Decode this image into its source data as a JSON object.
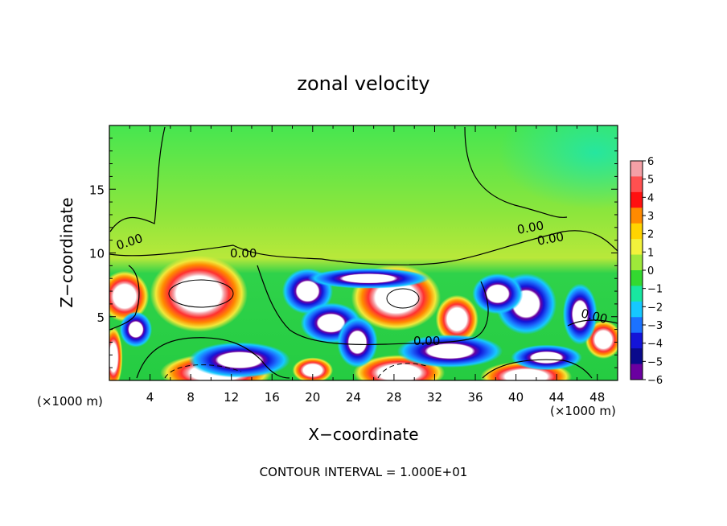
{
  "chart_data": {
    "type": "heatmap",
    "title": "zonal velocity",
    "xlabel": "X−coordinate",
    "ylabel": "Z−coordinate",
    "x_unit_left": "(×1000 m)",
    "x_unit_right": "(×1000 m)",
    "footer": "CONTOUR INTERVAL = 1.000E+01",
    "xlim": [
      0,
      50
    ],
    "ylim": [
      0,
      20
    ],
    "x_ticks": [
      4,
      8,
      12,
      16,
      20,
      24,
      28,
      32,
      36,
      40,
      44,
      48
    ],
    "x_tick_labels": [
      "4",
      "8",
      "12",
      "16",
      "20",
      "24",
      "28",
      "32",
      "36",
      "40",
      "44",
      "48"
    ],
    "y_ticks": [
      5,
      10,
      15
    ],
    "y_tick_labels": [
      "5",
      "10",
      "15"
    ],
    "colorbar": {
      "min": -6,
      "max": 6,
      "labels": [
        "6",
        "5",
        "4",
        "3",
        "2",
        "1",
        "0",
        "−1",
        "−2",
        "−3",
        "−4",
        "−5",
        "−6"
      ],
      "colors": [
        "#f4a0a6",
        "#ff5050",
        "#ff1010",
        "#ff8a00",
        "#ffd400",
        "#f2f23c",
        "#9ee83a",
        "#33d930",
        "#18e6a0",
        "#16c8ff",
        "#1b72ff",
        "#1414d8",
        "#0a0a8c",
        "#6a00a0"
      ]
    },
    "contour_labels": [
      "0.00",
      "0.00",
      "0.00",
      "0.00",
      "0.00",
      "0.00"
    ],
    "features": [
      {
        "kind": "positive",
        "cx": 8.8,
        "cy": 6.8,
        "rx": 4.8,
        "ry": 3.0
      },
      {
        "kind": "positive",
        "cx": 28.2,
        "cy": 6.5,
        "rx": 4.4,
        "ry": 2.6
      },
      {
        "kind": "positive",
        "cx": 34.2,
        "cy": 4.8,
        "rx": 2.1,
        "ry": 1.9
      },
      {
        "kind": "positive",
        "cx": 1.5,
        "cy": 6.6,
        "rx": 2.4,
        "ry": 2.0
      },
      {
        "kind": "positive",
        "cx": 48.6,
        "cy": 3.2,
        "rx": 1.8,
        "ry": 1.5
      },
      {
        "kind": "positive",
        "cx": 10.5,
        "cy": 0.6,
        "rx": 5.5,
        "ry": 1.5
      },
      {
        "kind": "positive",
        "cx": 28.5,
        "cy": 0.6,
        "rx": 4.5,
        "ry": 1.4
      },
      {
        "kind": "positive",
        "cx": 41.0,
        "cy": 0.3,
        "rx": 4.5,
        "ry": 1.2
      },
      {
        "kind": "positive",
        "cx": 20.0,
        "cy": 0.8,
        "rx": 2.0,
        "ry": 1.0
      },
      {
        "kind": "positive",
        "cx": 0.4,
        "cy": 1.8,
        "rx": 0.9,
        "ry": 2.4
      },
      {
        "kind": "negative",
        "cx": 41.0,
        "cy": 6.0,
        "rx": 3.0,
        "ry": 2.4
      },
      {
        "kind": "negative",
        "cx": 19.5,
        "cy": 7.0,
        "rx": 2.5,
        "ry": 1.8
      },
      {
        "kind": "negative",
        "cx": 38.2,
        "cy": 6.8,
        "rx": 2.5,
        "ry": 1.6
      },
      {
        "kind": "negative",
        "cx": 21.8,
        "cy": 4.5,
        "rx": 3.0,
        "ry": 1.6
      },
      {
        "kind": "negative",
        "cx": 12.8,
        "cy": 1.6,
        "rx": 5.0,
        "ry": 1.4
      },
      {
        "kind": "negative",
        "cx": 33.5,
        "cy": 2.3,
        "rx": 5.2,
        "ry": 1.3
      },
      {
        "kind": "negative",
        "cx": 46.3,
        "cy": 5.2,
        "rx": 1.7,
        "ry": 2.4
      },
      {
        "kind": "negative",
        "cx": 24.4,
        "cy": 3.0,
        "rx": 2.0,
        "ry": 2.0
      },
      {
        "kind": "negative",
        "cx": 2.6,
        "cy": 4.0,
        "rx": 1.6,
        "ry": 1.4
      },
      {
        "kind": "negative",
        "cx": 43.0,
        "cy": 1.8,
        "rx": 3.5,
        "ry": 1.0
      },
      {
        "kind": "negative",
        "cx": 25.5,
        "cy": 8.0,
        "rx": 6.0,
        "ry": 0.8
      }
    ]
  }
}
